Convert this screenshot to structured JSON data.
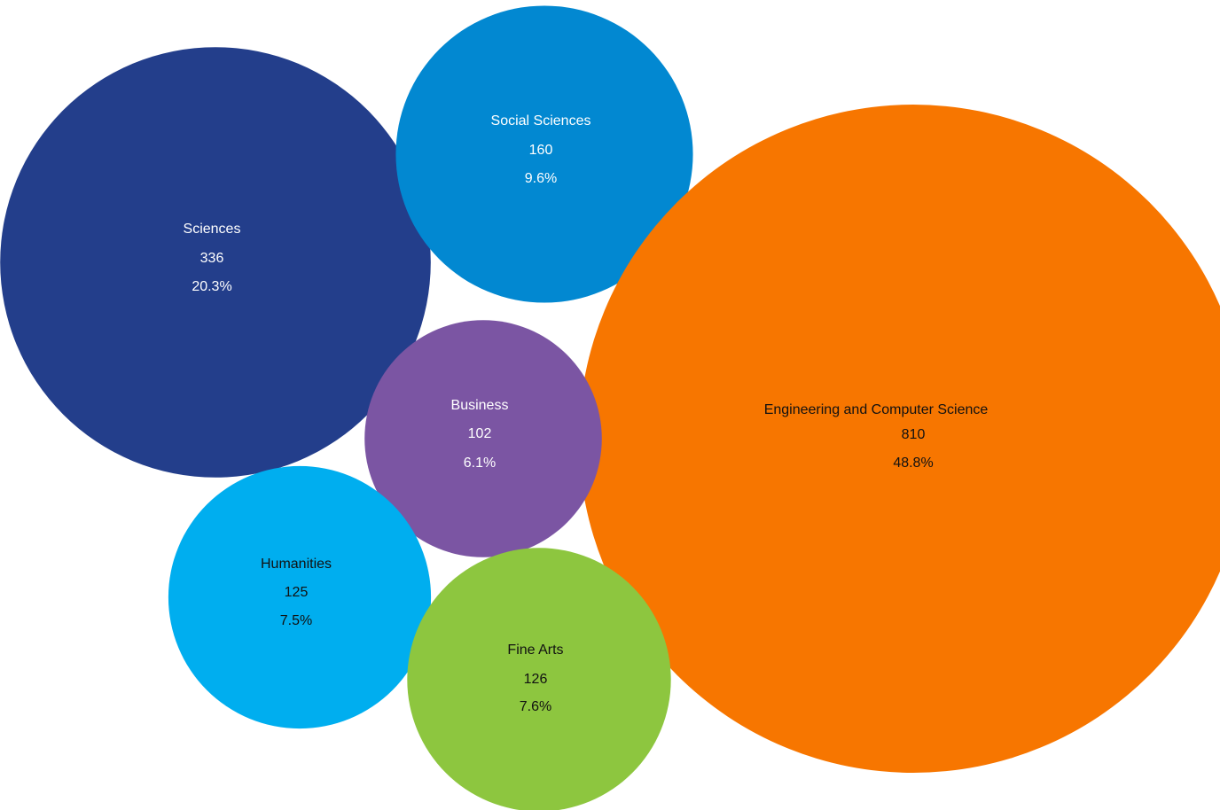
{
  "chart_data": {
    "type": "bubble",
    "title": "",
    "series": [
      {
        "label": "Sciences",
        "value": 336,
        "percent": "20.3%",
        "color": "#233E8B",
        "text_color": "#ffffff"
      },
      {
        "label": "Social Sciences",
        "value": 160,
        "percent": "9.6%",
        "color": "#0288D1",
        "text_color": "#ffffff"
      },
      {
        "label": "Engineering and Computer Science",
        "value": 810,
        "percent": "48.8%",
        "color": "#F77600",
        "text_color": "#111111"
      },
      {
        "label": "Business",
        "value": 102,
        "percent": "6.1%",
        "color": "#7B55A3",
        "text_color": "#ffffff"
      },
      {
        "label": "Humanities",
        "value": 125,
        "percent": "7.5%",
        "color": "#00AEEF",
        "text_color": "#111111"
      },
      {
        "label": "Fine Arts",
        "value": 126,
        "percent": "7.6%",
        "color": "#8DC63F",
        "text_color": "#111111"
      }
    ]
  }
}
